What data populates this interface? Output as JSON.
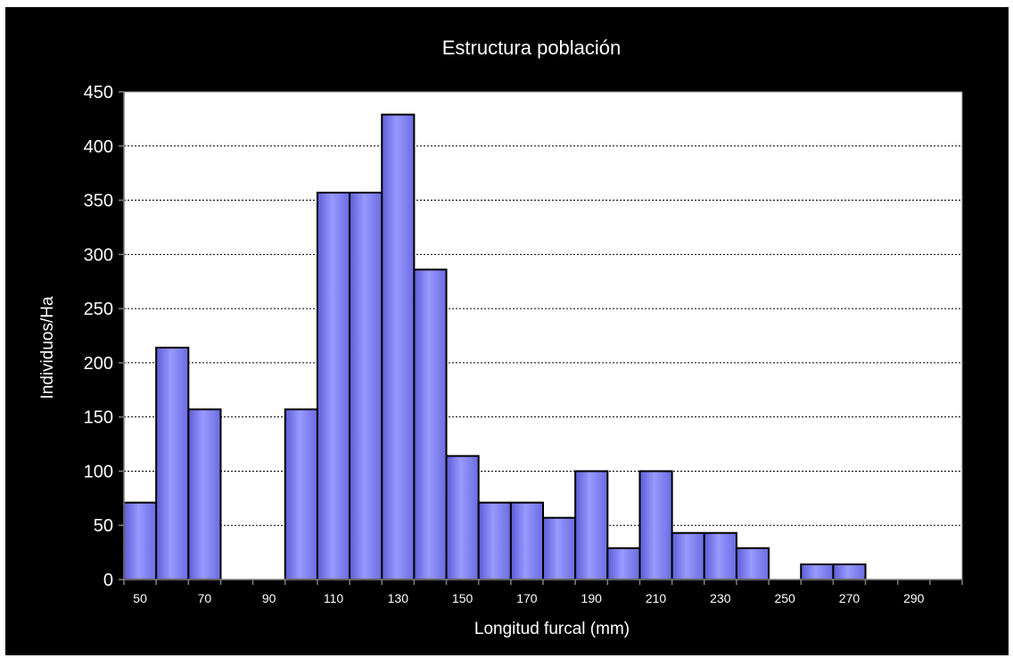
{
  "chart_data": {
    "type": "bar",
    "title": "Estructura población",
    "xlabel": "Longitud furcal (mm)",
    "ylabel": "Individuos/Ha",
    "categories": [
      "50",
      "60",
      "70",
      "80",
      "90",
      "100",
      "110",
      "120",
      "130",
      "140",
      "150",
      "160",
      "170",
      "180",
      "190",
      "200",
      "210",
      "220",
      "230",
      "240",
      "250",
      "260",
      "270",
      "280",
      "290",
      "300"
    ],
    "x_tick_labels": [
      "50",
      "70",
      "90",
      "110",
      "130",
      "150",
      "170",
      "190",
      "210",
      "230",
      "250",
      "270",
      "290"
    ],
    "values": [
      71,
      214,
      157,
      0,
      0,
      157,
      357,
      357,
      429,
      286,
      114,
      71,
      71,
      57,
      100,
      29,
      100,
      43,
      43,
      29,
      0,
      14,
      14,
      0,
      0,
      0
    ],
    "ylim": [
      0,
      450
    ],
    "yticks": [
      0,
      50,
      100,
      150,
      200,
      250,
      300,
      350,
      400,
      450
    ],
    "grid": true,
    "legend": "none",
    "colors": {
      "background": "#000000",
      "plot_area": "#ffffff",
      "bar_fill": "#9999ff",
      "bar_edge": "#000000",
      "text": "#ffffff"
    }
  }
}
